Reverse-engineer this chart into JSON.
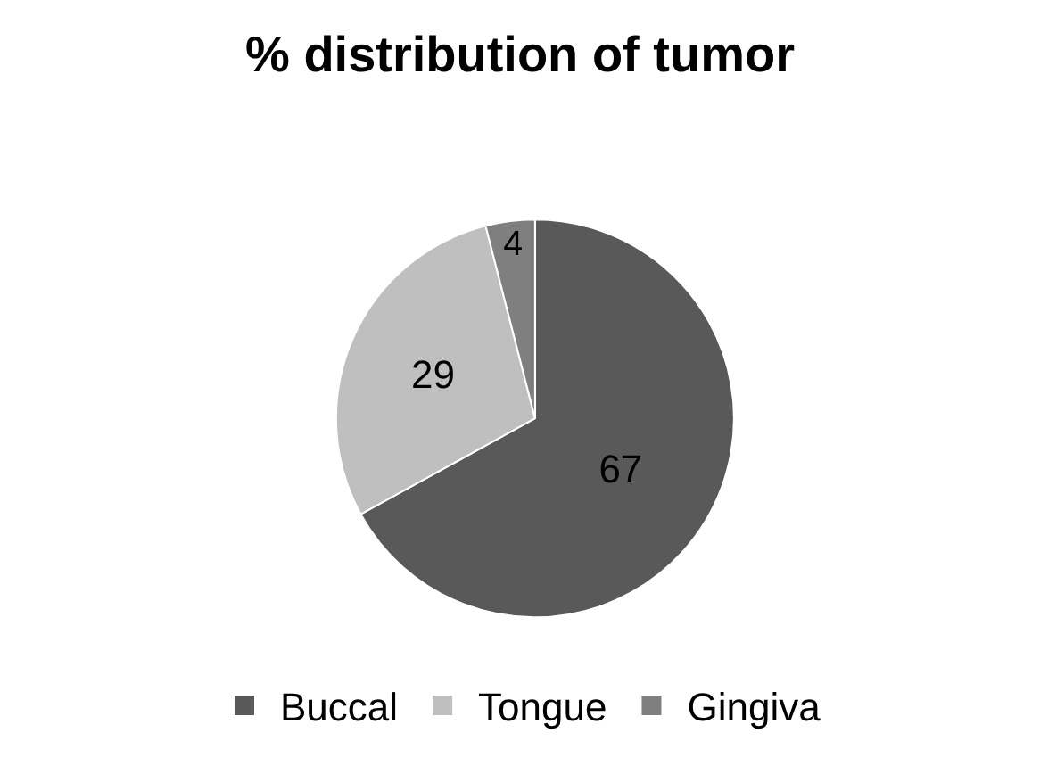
{
  "chart_data": {
    "type": "pie",
    "title": "% distribution of tumor",
    "categories": [
      "Buccal",
      "Tongue",
      "Gingiva"
    ],
    "values": [
      67,
      29,
      4
    ],
    "colors": [
      "#595959",
      "#bfbfbf",
      "#7f7f7f"
    ],
    "data_labels": true,
    "legend": "bottom"
  }
}
